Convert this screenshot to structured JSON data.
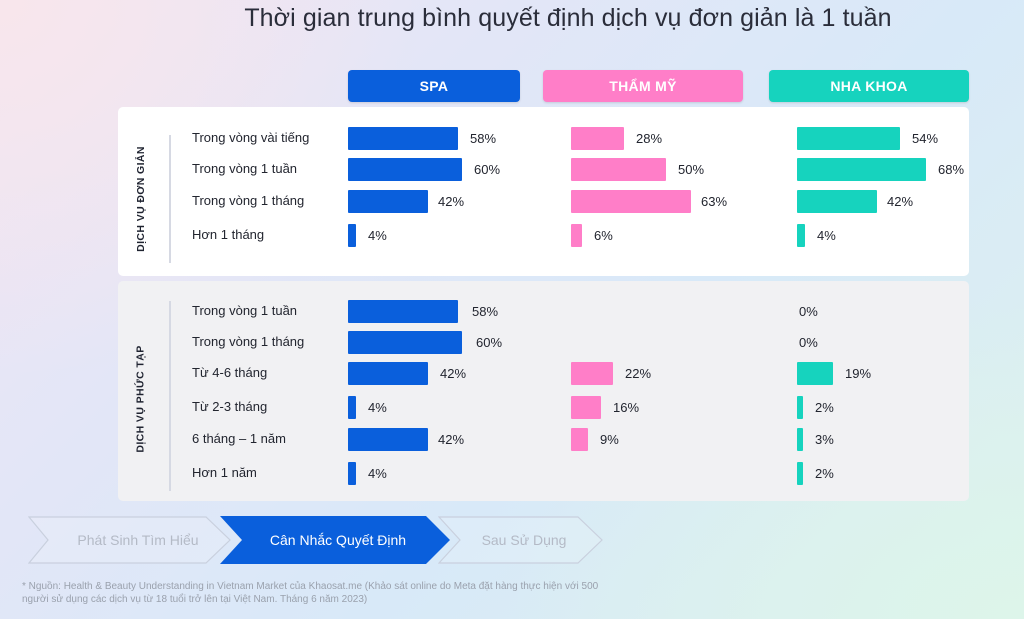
{
  "title": "Thời gian trung bình quyết định dịch vụ đơn giản là 1 tuần",
  "columns": [
    {
      "label": "SPA",
      "color": "#0a5fdc",
      "text_color": "#ffffff"
    },
    {
      "label": "THẨM MỸ",
      "color": "#ff7ec8",
      "text_color": "#ffffff"
    },
    {
      "label": "NHA KHOA",
      "color": "#16d3be",
      "text_color": "#ffffff"
    }
  ],
  "sections": [
    {
      "label": "DỊCH VỤ ĐƠN GIẢN",
      "rows": [
        {
          "label": "Trong vòng vài tiếng",
          "values": [
            "58%",
            "28%",
            "54%"
          ]
        },
        {
          "label": "Trong vòng 1 tuần",
          "values": [
            "60%",
            "50%",
            "68%"
          ]
        },
        {
          "label": "Trong vòng 1 tháng",
          "values": [
            "42%",
            "63%",
            "42%"
          ]
        },
        {
          "label": "Hơn 1 tháng",
          "values": [
            "4%",
            "6%",
            "4%"
          ]
        }
      ]
    },
    {
      "label": "DỊCH VỤ PHỨC TẠP",
      "rows": [
        {
          "label": "Trong vòng 1 tuần",
          "values": [
            "58%",
            "",
            "0%"
          ]
        },
        {
          "label": "Trong vòng 1 tháng",
          "values": [
            "60%",
            "",
            "0%"
          ]
        },
        {
          "label": "Từ 4-6 tháng",
          "values": [
            "42%",
            "22%",
            "19%"
          ]
        },
        {
          "label": "Từ 2-3 tháng",
          "values": [
            "4%",
            "16%",
            "2%"
          ]
        },
        {
          "label": "6 tháng – 1 năm",
          "values": [
            "42%",
            "9%",
            "3%"
          ]
        },
        {
          "label": "Hơn 1 năm",
          "values": [
            "4%",
            "",
            "2%"
          ]
        }
      ]
    }
  ],
  "steps": [
    {
      "label": "Phát Sinh Tìm Hiểu",
      "active": false
    },
    {
      "label": "Cân Nhắc Quyết Định",
      "active": true
    },
    {
      "label": "Sau Sử Dụng",
      "active": false
    }
  ],
  "footnote": "* Nguồn: Health & Beauty Understanding in Vietnam Market của Khaosat.me (Khảo sát online do Meta đặt hàng thực hiện với 500 người sử dụng các dịch vụ từ 18 tuổi trở lên tại Việt Nam. Tháng 6 năm 2023)",
  "chart_data": {
    "type": "bar",
    "orientation": "horizontal",
    "title": "Thời gian trung bình quyết định dịch vụ đơn giản là 1 tuần",
    "xlabel": "",
    "ylabel": "",
    "unit": "%",
    "legend": [
      "SPA",
      "THẨM MỸ",
      "NHA KHOA"
    ],
    "panels": [
      {
        "group": "DỊCH VỤ ĐƠN GIẢN",
        "categories": [
          "Trong vòng vài tiếng",
          "Trong vòng 1 tuần",
          "Trong vòng 1 tháng",
          "Hơn 1 tháng"
        ],
        "series": [
          {
            "name": "SPA",
            "values": [
              58,
              60,
              42,
              4
            ]
          },
          {
            "name": "THẨM MỸ",
            "values": [
              28,
              50,
              63,
              6
            ]
          },
          {
            "name": "NHA KHOA",
            "values": [
              54,
              68,
              42,
              4
            ]
          }
        ]
      },
      {
        "group": "DỊCH VỤ PHỨC TẠP",
        "categories": [
          "Trong vòng 1 tuần",
          "Trong vòng 1 tháng",
          "Từ 4-6 tháng",
          "Từ 2-3 tháng",
          "6 tháng – 1 năm",
          "Hơn 1 năm"
        ],
        "series": [
          {
            "name": "SPA",
            "values": [
              58,
              60,
              42,
              4,
              42,
              4
            ]
          },
          {
            "name": "THẨM MỸ",
            "values": [
              null,
              null,
              22,
              16,
              9,
              null
            ]
          },
          {
            "name": "NHA KHOA",
            "values": [
              0,
              0,
              19,
              2,
              3,
              2
            ]
          }
        ]
      }
    ],
    "grid": false
  }
}
